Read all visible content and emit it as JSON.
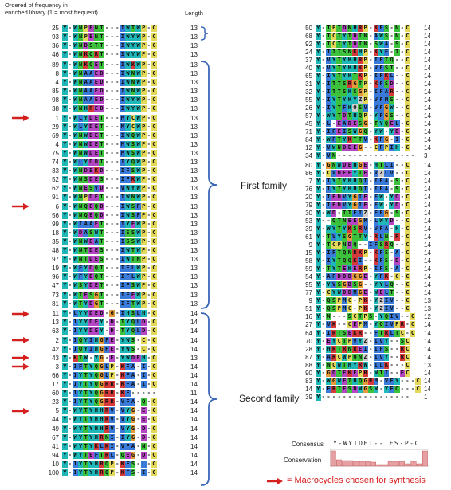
{
  "header": {
    "title_line1": "Ordered of frequency in",
    "title_line2": "enriched library (1 = most frequent)",
    "length_label": "Length"
  },
  "families": {
    "first_label": "First family",
    "second_label": "Second family"
  },
  "consensus": {
    "label": "Consensus",
    "sequence": "Y-WYTDET--IFS-P-C",
    "conservation_label": "Conservation",
    "levels": [
      95,
      40,
      35,
      35,
      30,
      30,
      28,
      25,
      10,
      10,
      30,
      30,
      30,
      15,
      30,
      15,
      95
    ]
  },
  "legend": {
    "text": "= Macrocycles chosen for synthesis"
  },
  "colors": {
    "Y": "#1fb7b7",
    "W": "#1fb7b7",
    "F": "#3a7ad9",
    "H": "#1fb7b7",
    "A": "#3a7ad9",
    "I": "#3a7ad9",
    "L": "#3a7ad9",
    "M": "#3a7ad9",
    "V": "#3a7ad9",
    "C": "#e3d85a",
    "G": "#e59a3a",
    "P": "#e3d85a",
    "S": "#3cc23c",
    "T": "#3cc23c",
    "N": "#3cc23c",
    "Q": "#3cc23c",
    "D": "#b446c4",
    "E": "#b446c4",
    "K": "#d63a3a",
    "R": "#d63a3a",
    "-": "#ffffff",
    " ": "#ffffff",
    "arrow": "#d62020"
  },
  "left_sequences": [
    {
      "rank": "25",
      "seq": "Y-WNPENT---IWTWP-C",
      "len": "13",
      "arrow": false
    },
    {
      "rank": "93",
      "seq": "Y-WNPENT---IWYWP-C",
      "len": "13",
      "arrow": false
    },
    {
      "rank": "36",
      "seq": "Y-WNDSTT---IWYWP-C",
      "len": "13",
      "arrow": false
    },
    {
      "rank": "46",
      "seq": "Y-WNKQRT---IWYWP-C",
      "len": "13",
      "arrow": false
    },
    {
      "rank": "89",
      "seq": "Y-WNKQET---IWKWP-C",
      "len": "13",
      "arrow": false
    },
    {
      "rank": "8",
      "seq": "Y-WNAAED---IWNWP-C",
      "len": "13",
      "arrow": false
    },
    {
      "rank": "4",
      "seq": "Y-WNAAED---IWNWP-C",
      "len": "13",
      "arrow": false
    },
    {
      "rank": "85",
      "seq": "Y-WNAAED---IWNWP-C",
      "len": "13",
      "arrow": false
    },
    {
      "rank": "98",
      "seq": "Y-WNAAED---IWYWP-C",
      "len": "13",
      "arrow": false
    },
    {
      "rank": "38",
      "seq": "Y-WNHRED---IWYWP-C",
      "len": "13",
      "arrow": false
    },
    {
      "rank": "1",
      "seq": "Y-WLYDET---MYCWP-C",
      "len": "13",
      "arrow": true
    },
    {
      "rank": "29",
      "seq": "Y-WLYDET---MYCWP-C",
      "len": "13",
      "arrow": false
    },
    {
      "rank": "69",
      "seq": "Y-WNWDET---IWQWP-C",
      "len": "13",
      "arrow": false
    },
    {
      "rank": "4",
      "seq": "Y-WNWDET---MWSWP-C",
      "len": "13",
      "arrow": false
    },
    {
      "rank": "75",
      "seq": "Y-WNWDET---MWSWP-C",
      "len": "13",
      "arrow": false
    },
    {
      "rank": "74",
      "seq": "Y-WLYDDT---IYQWP-C",
      "len": "13",
      "arrow": false
    },
    {
      "rank": "33",
      "seq": "Y-WNDEKD---IFSWP-C",
      "len": "13",
      "arrow": false
    },
    {
      "rank": "52",
      "seq": "Y-WNSDES---IFKWP-C",
      "len": "13",
      "arrow": false
    },
    {
      "rank": "62",
      "seq": "Y-WNESVD---VWYWP-C",
      "len": "13",
      "arrow": false
    },
    {
      "rank": "91",
      "seq": "Y-WNPDET---IWNWP-C",
      "len": "13",
      "arrow": false
    },
    {
      "rank": "6",
      "seq": "Y-WNQEQD---IWSFP-C",
      "len": "13",
      "arrow": true
    },
    {
      "rank": "56",
      "seq": "Y-WNQEQD---IWSFP-C",
      "len": "13",
      "arrow": false
    },
    {
      "rank": "99",
      "seq": "Y-WIAAET---IYEWP-C",
      "len": "13",
      "arrow": false
    },
    {
      "rank": "18",
      "seq": "Y-WDASWT---ISSWP-C",
      "len": "13",
      "arrow": false
    },
    {
      "rank": "35",
      "seq": "Y-WNWEAT---ISSWP-C",
      "len": "13",
      "arrow": false
    },
    {
      "rank": "48",
      "seq": "Y-WNTDES---IWTWP-C",
      "len": "13",
      "arrow": false
    },
    {
      "rank": "97",
      "seq": "Y-WNTDES---IWTNP-C",
      "len": "13",
      "arrow": false
    },
    {
      "rank": "19",
      "seq": "Y-WFYDQT---IFLWP-C",
      "len": "13",
      "arrow": false
    },
    {
      "rank": "96",
      "seq": "Y-WFYDQT---IFLWP-C",
      "len": "13",
      "arrow": false
    },
    {
      "rank": "47",
      "seq": "Y-WSYDET---IFSWP-C",
      "len": "13",
      "arrow": false
    },
    {
      "rank": "73",
      "seq": "Y-WTESGT---IFEWP-C",
      "len": "13",
      "arrow": false
    },
    {
      "rank": "81",
      "seq": "Y-WTYDGT---IFTWP-C",
      "len": "13",
      "arrow": false
    },
    {
      "rank": "11",
      "seq": "Y-LYYDED-G-IHSLH-C",
      "len": "14",
      "arrow": true
    },
    {
      "rank": "13",
      "seq": "Y-IYYDEY-D-TYQLD-C",
      "len": "14",
      "arrow": false
    },
    {
      "rank": "63",
      "seq": "Y-IYYDEY-D-TYQLD-C",
      "len": "14",
      "arrow": false
    },
    {
      "rank": "2",
      "seq": "Y-IQYIHGFE-YWS-C-C",
      "len": "14",
      "arrow": true
    },
    {
      "rank": "42",
      "seq": "Y-IQYIHGFE-YWS-C-C",
      "len": "14",
      "arrow": false
    },
    {
      "rank": "43",
      "seq": "Y-KTW-YG-E-YWDEH-C",
      "len": "13",
      "arrow": true
    },
    {
      "rank": "3",
      "seq": "Y-IFTYQGLP-KFA-I-C",
      "len": "14",
      "arrow": true
    },
    {
      "rank": "66",
      "seq": "Y-IYTYQGLP-KFA-I-C",
      "len": "14",
      "arrow": false
    },
    {
      "rank": "17",
      "seq": "Y-IYTYQGRR-KFA-I-C",
      "len": "14",
      "arrow": false
    },
    {
      "rank": "60",
      "seq": "Y-IYTYQGRR-KF-----",
      "len": "11",
      "arrow": false
    },
    {
      "rank": "23",
      "seq": "Y-IYTYQGRR-VFA-Q-C",
      "len": "14",
      "arrow": false
    },
    {
      "rank": "5",
      "seq": "Y-WYTYHHRV-VYG-E-C",
      "len": "14",
      "arrow": true
    },
    {
      "rank": "44",
      "seq": "Y-WYTYHHRV-VYG-E-C",
      "len": "14",
      "arrow": false
    },
    {
      "rank": "49",
      "seq": "Y-WYTYHHRV-VYG-D-C",
      "len": "14",
      "arrow": false
    },
    {
      "rank": "67",
      "seq": "Y-WYTYHRNI-IYG-D-C",
      "len": "14",
      "arrow": false
    },
    {
      "rank": "41",
      "seq": "Y-WYTYKLKI-VFA-N-C",
      "len": "14",
      "arrow": false
    },
    {
      "rank": "94",
      "seq": "Y-WYTEFTRL-QEG-D-C",
      "len": "14",
      "arrow": false
    },
    {
      "rank": "10",
      "seq": "Y-IYTYHRQP-KFS-L-C",
      "len": "14",
      "arrow": false
    },
    {
      "rank": "100",
      "seq": "Y-IYTYHRQP-KFS-I-C",
      "len": "14",
      "arrow": false
    }
  ],
  "right_sequences": [
    {
      "rank": "50",
      "seq": "Y-TPTDNHRP-KFS-N-C",
      "len": "14"
    },
    {
      "rank": "68",
      "seq": "Y-TCTYTDTN-AWS-N-C",
      "len": "14"
    },
    {
      "rank": "92",
      "seq": "Y-TCTYTDTN-SWA-S-C",
      "len": "14"
    },
    {
      "rank": "24",
      "seq": "Y-ITTSNKHP-KYF-T-C",
      "len": "14"
    },
    {
      "rank": "37",
      "seq": "Y-VYTYHHRP-IFTQ--C",
      "len": "14"
    },
    {
      "rank": "40",
      "seq": "Y-VYTYHHKP-VFST--C",
      "len": "14"
    },
    {
      "rank": "65",
      "seeq": "",
      "seq": "Y-IYTYHTKP-IFKL--C",
      "len": "14"
    },
    {
      "rank": "31",
      "seq": "Y-ITTSRGTP-KFSD--C",
      "len": "14"
    },
    {
      "rank": "32",
      "seq": "Y-ITTSHSGP-IFAR--C",
      "len": "14"
    },
    {
      "rank": "55",
      "seq": "Y-IYTYHYZP-VFMS--C",
      "len": "14"
    },
    {
      "rank": "26",
      "seq": "Y-IYTFHOSV-VFGW--C",
      "len": "14"
    },
    {
      "rank": "57",
      "seq": "Y-WYTDTHQP-YFGS--C",
      "len": "14"
    },
    {
      "rank": "45",
      "seq": "Y-L-EADESG-TYQEL-C",
      "len": "14"
    },
    {
      "rank": "71",
      "seq": "Y-IFEISWGQ-YW-YD-C",
      "len": "14"
    },
    {
      "rank": "84",
      "seq": "Y-WFTYKTTV-KFG-I-C",
      "len": "14"
    },
    {
      "rank": "12",
      "seq": "Y-VWNDEEG--CFPIH-C",
      "len": "14"
    },
    {
      "rank": "34",
      "seq": "Y-VN---------------",
      "len": "3"
    },
    {
      "rank": "80",
      "seq": "Y-GNWDEHGE-HTLI--C",
      "len": "14"
    },
    {
      "rank": "86",
      "seq": "Y-CVDEEYTE-VZLV--C",
      "len": "14"
    },
    {
      "rank": "7",
      "seq": "Y-IYTYHHQI-IFA-S-C",
      "len": "14"
    },
    {
      "rank": "76",
      "seq": "Y-IYTYHHQI-IFA-S-C",
      "len": "14"
    },
    {
      "rank": "20",
      "seq": "Y-IEDVYGIE-FW-YD-C",
      "len": "14"
    },
    {
      "rank": "79",
      "seq": "Y-IEDVYGIE-FW-YD-C",
      "len": "14"
    },
    {
      "rank": "30",
      "seq": "Y-WD-TTFIZ-FFG-S-C",
      "len": "14"
    },
    {
      "rank": "53",
      "seq": "Y--QTNEEGM-LWYD--C",
      "len": "14"
    },
    {
      "rank": "39",
      "seq": "Y-WYTYKSRV-VFA-H-C",
      "len": "14"
    },
    {
      "rank": "61",
      "seq": "Y-TVYSGTTY-RLN-R-C",
      "len": "14"
    },
    {
      "rank": "9",
      "seq": "Y-TCPNDQ--IFSRQ--C",
      "len": "14"
    },
    {
      "rank": "15",
      "seq": "Y-IFTQNRKP-KFS-A-C",
      "len": "14"
    },
    {
      "rank": "58",
      "seq": "Y-IYTQQKI--KFS-D-C",
      "len": "14"
    },
    {
      "rank": "59",
      "seq": "Y-TYTEHERP-IFS-A-C",
      "len": "14"
    },
    {
      "rank": "54",
      "seq": "Y-AFDDDGGE-YFK-C-C",
      "len": "14"
    },
    {
      "rank": "95",
      "seq": "Y-YVSGDSG--YYLQ--C",
      "len": "14"
    },
    {
      "rank": "77",
      "seq": "Y-CYWDDMGE-WELT--C",
      "len": "14"
    },
    {
      "rank": "9",
      "seq": "Y-QSPMC-PK-YZIV--C",
      "len": "13"
    },
    {
      "rank": "51",
      "seq": "Y-QSPMC-PK-YZIV--C",
      "len": "13"
    },
    {
      "rank": "16",
      "seq": "Y-N---SCTPS-YQIV--C",
      "len": "12"
    },
    {
      "rank": "27",
      "seq": "Y-VK--CEPM-YQIVPR-C",
      "len": "14"
    },
    {
      "rank": "64",
      "seq": "Y-IRTSEKR--FTRLTC-C",
      "len": "14"
    },
    {
      "rank": "70",
      "seq": "Y-EYCTPVYZ-IVY--SC",
      "len": "14"
    },
    {
      "rank": "28",
      "seq": "Y-HRTRNREI-IFS--RC",
      "len": "14"
    },
    {
      "rank": "87",
      "seq": "Y-ARCWPQNZ-IVY--RC",
      "len": "14"
    },
    {
      "rank": "88",
      "seq": "Y-NCWTHYRW-ILK---C",
      "len": "13"
    },
    {
      "rank": "90",
      "seq": "Y-GDTEKEPR-WTI--EC",
      "len": "14"
    },
    {
      "rank": "83",
      "seq": "Y-WGWETHQGRM-VFY---C",
      "len": "14"
    },
    {
      "rank": "14",
      "seq": "Y-FRTESDWGSW-YFQ---C",
      "len": "14"
    },
    {
      "rank": "39",
      "seq": "Y-----------------",
      "len": "1"
    }
  ]
}
